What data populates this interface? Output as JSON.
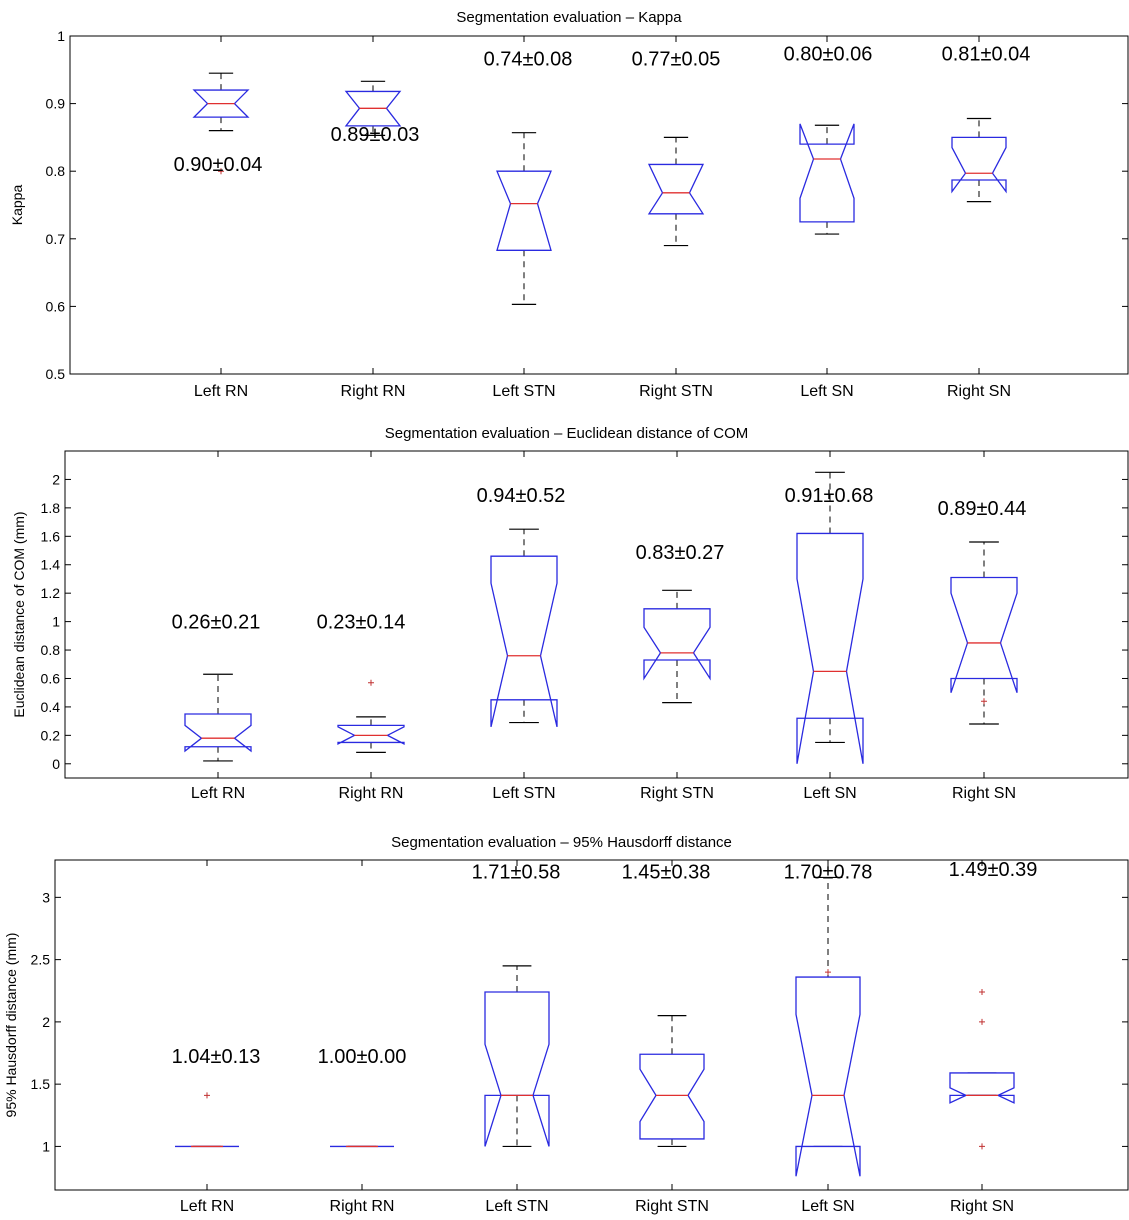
{
  "chart_data": [
    {
      "type": "box",
      "title": "Segmentation evaluation – Kappa",
      "ylabel": "Kappa",
      "xlabel": "",
      "ylim": [
        0.5,
        1.0
      ],
      "yticks": [
        0.5,
        0.6,
        0.7,
        0.8,
        0.9,
        1
      ],
      "yticklabels": [
        "0.5",
        "0.6",
        "0.7",
        "0.8",
        "0.9",
        "1"
      ],
      "categories": [
        "Left RN",
        "Right RN",
        "Left STN",
        "Right STN",
        "Left SN",
        "Right SN"
      ],
      "boxes": [
        {
          "min": 0.86,
          "q1": 0.88,
          "median": 0.9,
          "q3": 0.92,
          "max": 0.945,
          "notch_lo": 0.88,
          "notch_hi": 0.92,
          "outliers": [
            0.8
          ]
        },
        {
          "min": 0.853,
          "q1": 0.867,
          "median": 0.893,
          "q3": 0.918,
          "max": 0.933,
          "notch_lo": 0.867,
          "notch_hi": 0.918,
          "outliers": []
        },
        {
          "min": 0.603,
          "q1": 0.683,
          "median": 0.752,
          "q3": 0.8,
          "max": 0.857,
          "notch_lo": 0.683,
          "notch_hi": 0.8,
          "outliers": []
        },
        {
          "min": 0.69,
          "q1": 0.737,
          "median": 0.768,
          "q3": 0.81,
          "max": 0.85,
          "notch_lo": 0.737,
          "notch_hi": 0.81,
          "outliers": []
        },
        {
          "min": 0.707,
          "q1": 0.725,
          "median": 0.818,
          "q3": 0.84,
          "max": 0.868,
          "notch_lo": 0.76,
          "notch_hi": 0.87,
          "outliers": []
        },
        {
          "min": 0.755,
          "q1": 0.787,
          "median": 0.797,
          "q3": 0.85,
          "max": 0.878,
          "notch_lo": 0.77,
          "notch_hi": 0.835,
          "outliers": []
        }
      ],
      "annotations": [
        {
          "text": "0.90±0.04",
          "y": 0.8
        },
        {
          "text": "0.89±0.03",
          "y": 0.845
        },
        {
          "text": "0.74±0.08",
          "y": 0.956
        },
        {
          "text": "0.77±0.05",
          "y": 0.956
        },
        {
          "text": "0.80±0.06",
          "y": 0.964
        },
        {
          "text": "0.81±0.04",
          "y": 0.964
        }
      ]
    },
    {
      "type": "box",
      "title": "Segmentation evaluation – Euclidean distance of COM",
      "ylabel": "Euclidean distance of COM (mm)",
      "xlabel": "",
      "ylim": [
        -0.1,
        2.2
      ],
      "yticks": [
        0,
        0.2,
        0.4,
        0.6,
        0.8,
        1,
        1.2,
        1.4,
        1.6,
        1.8,
        2
      ],
      "yticklabels": [
        "0",
        "0.2",
        "0.4",
        "0.6",
        "0.8",
        "1",
        "1.2",
        "1.4",
        "1.6",
        "1.8",
        "2"
      ],
      "categories": [
        "Left RN",
        "Right RN",
        "Left STN",
        "Right STN",
        "Left SN",
        "Right SN"
      ],
      "boxes": [
        {
          "min": 0.02,
          "q1": 0.12,
          "median": 0.18,
          "q3": 0.35,
          "max": 0.63,
          "notch_lo": 0.09,
          "notch_hi": 0.27,
          "outliers": []
        },
        {
          "min": 0.08,
          "q1": 0.15,
          "median": 0.2,
          "q3": 0.27,
          "max": 0.33,
          "notch_lo": 0.14,
          "notch_hi": 0.26,
          "outliers": [
            0.57
          ]
        },
        {
          "min": 0.29,
          "q1": 0.45,
          "median": 0.76,
          "q3": 1.46,
          "max": 1.65,
          "notch_lo": 0.26,
          "notch_hi": 1.27,
          "outliers": []
        },
        {
          "min": 0.43,
          "q1": 0.73,
          "median": 0.78,
          "q3": 1.09,
          "max": 1.22,
          "notch_lo": 0.6,
          "notch_hi": 0.96,
          "outliers": []
        },
        {
          "min": 0.15,
          "q1": 0.32,
          "median": 0.65,
          "q3": 1.62,
          "max": 2.05,
          "notch_lo": 0.0,
          "notch_hi": 1.3,
          "outliers": []
        },
        {
          "min": 0.28,
          "q1": 0.6,
          "median": 0.85,
          "q3": 1.31,
          "max": 1.56,
          "notch_lo": 0.5,
          "notch_hi": 1.2,
          "outliers": [
            0.44
          ]
        }
      ],
      "annotations": [
        {
          "text": "0.26±0.21",
          "y": 0.95
        },
        {
          "text": "0.23±0.14",
          "y": 0.95
        },
        {
          "text": "0.94±0.52",
          "y": 1.84
        },
        {
          "text": "0.83±0.27",
          "y": 1.44
        },
        {
          "text": "0.91±0.68",
          "y": 1.84
        },
        {
          "text": "0.89±0.44",
          "y": 1.75
        }
      ]
    },
    {
      "type": "box",
      "title": "Segmentation evaluation – 95% Hausdorff distance",
      "ylabel": "95% Hausdorff distance (mm)",
      "xlabel": "",
      "ylim": [
        0.65,
        3.3
      ],
      "yticks": [
        1,
        1.5,
        2,
        2.5,
        3
      ],
      "yticklabels": [
        "1",
        "1.5",
        "2",
        "2.5",
        "3"
      ],
      "categories": [
        "Left RN",
        "Right RN",
        "Left STN",
        "Right STN",
        "Left SN",
        "Right SN"
      ],
      "boxes": [
        {
          "min": 1.0,
          "q1": 1.0,
          "median": 1.0,
          "q3": 1.0,
          "max": 1.0,
          "notch_lo": 1.0,
          "notch_hi": 1.0,
          "outliers": [
            1.41
          ]
        },
        {
          "min": 1.0,
          "q1": 1.0,
          "median": 1.0,
          "q3": 1.0,
          "max": 1.0,
          "notch_lo": 1.0,
          "notch_hi": 1.0,
          "outliers": []
        },
        {
          "min": 1.0,
          "q1": 1.41,
          "median": 1.41,
          "q3": 2.24,
          "max": 2.45,
          "notch_lo": 1.0,
          "notch_hi": 1.82,
          "outliers": []
        },
        {
          "min": 1.0,
          "q1": 1.06,
          "median": 1.41,
          "q3": 1.74,
          "max": 2.05,
          "notch_lo": 1.2,
          "notch_hi": 1.62,
          "outliers": []
        },
        {
          "min": 1.0,
          "q1": 1.0,
          "median": 1.41,
          "q3": 2.36,
          "max": 3.16,
          "notch_lo": 0.76,
          "notch_hi": 2.06,
          "outliers": [
            2.4
          ]
        },
        {
          "min": 1.41,
          "q1": 1.41,
          "median": 1.41,
          "q3": 1.59,
          "max": 1.59,
          "notch_lo": 1.35,
          "notch_hi": 1.47,
          "outliers": [
            2.0,
            2.24,
            1.0
          ]
        }
      ],
      "annotations": [
        {
          "text": "1.04±0.13",
          "y": 1.67
        },
        {
          "text": "1.00±0.00",
          "y": 1.67
        },
        {
          "text": "1.71±0.58",
          "y": 3.15
        },
        {
          "text": "1.45±0.38",
          "y": 3.15
        },
        {
          "text": "1.70±0.78",
          "y": 3.15
        },
        {
          "text": "1.49±0.39",
          "y": 3.17
        }
      ]
    }
  ],
  "colors": {
    "box": "#2a2ae0",
    "median": "#e03030",
    "whisker": "#000000",
    "axes": "#000000",
    "outlier": "#c03030"
  }
}
